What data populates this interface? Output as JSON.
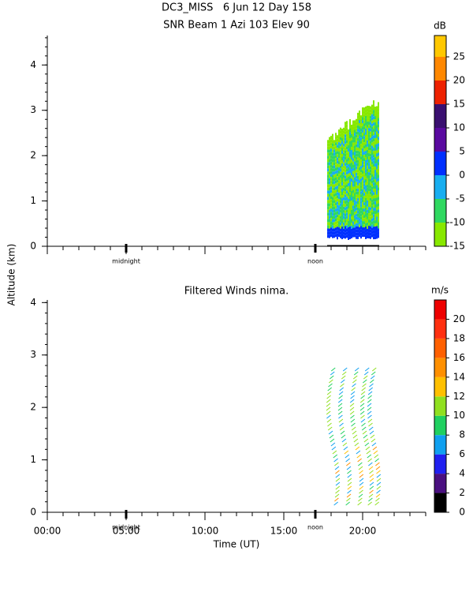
{
  "title": "DC3_MISS   6 Jun 12 Day 158",
  "y_label": "Altitude (km)",
  "x_label": "Time (UT)",
  "chart_data": [
    {
      "type": "heatmap",
      "title": "SNR Beam 1 Azi 103 Elev 90",
      "xlim": [
        0,
        24
      ],
      "xticks": [
        0,
        5,
        10,
        15,
        20
      ],
      "ylim": [
        0,
        4.65
      ],
      "yticks": [
        0,
        1,
        2,
        3,
        4
      ],
      "annotations": [
        {
          "text": "midnight",
          "x": 5
        },
        {
          "text": "noon",
          "x": 17
        }
      ],
      "colorbar": {
        "label": "dB",
        "levels": [
          -15,
          -10,
          -5,
          0,
          5,
          10,
          15,
          20,
          25,
          29.5
        ],
        "colors": [
          "#88e800",
          "#30d860",
          "#18aef0",
          "#0030ff",
          "#5a0aa0",
          "#3a1070",
          "#ee2200",
          "#ff8800",
          "#ffc800"
        ],
        "ticks": [
          -15,
          -10,
          -5,
          0,
          5,
          10,
          15,
          20,
          25
        ]
      }
    },
    {
      "type": "barbs",
      "title": "Filtered Winds nima.",
      "xlim": [
        0,
        24
      ],
      "xticks": [
        {
          "value": 0,
          "label": "00:00"
        },
        {
          "value": 5,
          "label": "05:00"
        },
        {
          "value": 10,
          "label": "10:00"
        },
        {
          "value": 15,
          "label": "15:00"
        },
        {
          "value": 20,
          "label": "20:00"
        }
      ],
      "ylim": [
        0,
        4.05
      ],
      "yticks": [
        0,
        1,
        2,
        3,
        4
      ],
      "annotations": [
        {
          "text": "midnight",
          "x": 5
        },
        {
          "text": "noon",
          "x": 17
        }
      ],
      "colorbar": {
        "label": "m/s",
        "levels": [
          0,
          2,
          4,
          6,
          8,
          10,
          12,
          14,
          16,
          18,
          20,
          22
        ],
        "colors": [
          "#000000",
          "#4a1080",
          "#2020f0",
          "#10a0f0",
          "#20d060",
          "#90e020",
          "#ffc000",
          "#ff9000",
          "#ff6000",
          "#ff3010",
          "#ee0000"
        ],
        "ticks": [
          0,
          2,
          4,
          6,
          8,
          10,
          12,
          14,
          16,
          18,
          20
        ]
      }
    }
  ]
}
